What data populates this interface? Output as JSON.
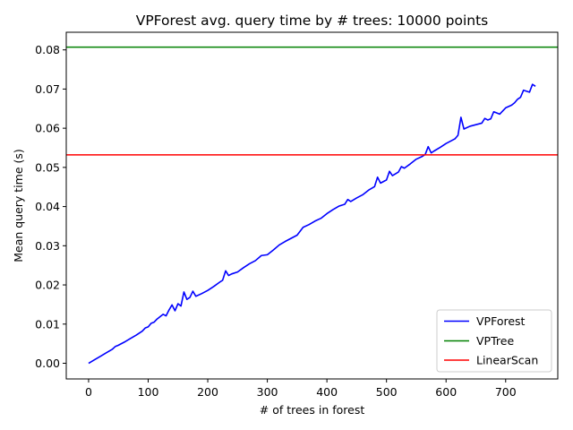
{
  "chart_data": {
    "type": "line",
    "title": "VPForest avg. query time by # trees: 10000 points",
    "xlabel": "# of trees in forest",
    "ylabel": "Mean query time (s)",
    "xlim": [
      -37.5,
      787.5
    ],
    "ylim": [
      -0.004,
      0.0845
    ],
    "xticks": [
      0,
      100,
      200,
      300,
      400,
      500,
      600,
      700
    ],
    "yticks": [
      0.0,
      0.01,
      0.02,
      0.03,
      0.04,
      0.05,
      0.06,
      0.07,
      0.08
    ],
    "ytick_labels": [
      "0.00",
      "0.01",
      "0.02",
      "0.03",
      "0.04",
      "0.05",
      "0.06",
      "0.07",
      "0.08"
    ],
    "legend_position": "lower-right",
    "grid": false,
    "series": [
      {
        "name": "VPForest",
        "color": "#0000ff",
        "x": [
          0,
          10,
          20,
          30,
          40,
          45,
          50,
          60,
          70,
          80,
          90,
          95,
          100,
          105,
          110,
          115,
          120,
          125,
          130,
          135,
          140,
          145,
          150,
          155,
          160,
          165,
          170,
          175,
          180,
          190,
          200,
          210,
          220,
          225,
          230,
          235,
          240,
          250,
          260,
          270,
          280,
          290,
          300,
          310,
          320,
          330,
          340,
          350,
          360,
          370,
          380,
          390,
          400,
          410,
          420,
          430,
          435,
          440,
          450,
          460,
          470,
          480,
          485,
          490,
          500,
          505,
          510,
          520,
          525,
          530,
          540,
          550,
          560,
          565,
          570,
          575,
          580,
          590,
          600,
          610,
          615,
          620,
          625,
          630,
          640,
          650,
          660,
          665,
          670,
          675,
          680,
          690,
          700,
          710,
          715,
          720,
          725,
          730,
          740,
          745,
          750
        ],
        "y": [
          0.0,
          0.0009,
          0.0018,
          0.0027,
          0.0036,
          0.0043,
          0.0046,
          0.0054,
          0.0063,
          0.0072,
          0.0082,
          0.009,
          0.0093,
          0.0102,
          0.0105,
          0.0113,
          0.0119,
          0.0125,
          0.0121,
          0.0136,
          0.0149,
          0.0134,
          0.0152,
          0.0146,
          0.0182,
          0.0163,
          0.0168,
          0.0184,
          0.0171,
          0.0178,
          0.0186,
          0.0196,
          0.0207,
          0.0212,
          0.0236,
          0.0224,
          0.0228,
          0.0233,
          0.0244,
          0.0254,
          0.0262,
          0.0275,
          0.0277,
          0.0289,
          0.0302,
          0.0311,
          0.0319,
          0.0327,
          0.0347,
          0.0354,
          0.0363,
          0.037,
          0.0382,
          0.0392,
          0.0401,
          0.0406,
          0.0418,
          0.0413,
          0.0422,
          0.043,
          0.0442,
          0.0451,
          0.0475,
          0.046,
          0.0468,
          0.049,
          0.0479,
          0.0488,
          0.0502,
          0.0498,
          0.0509,
          0.0521,
          0.0528,
          0.0533,
          0.0553,
          0.0537,
          0.0542,
          0.0551,
          0.0561,
          0.0569,
          0.0573,
          0.0582,
          0.0628,
          0.0598,
          0.0605,
          0.0609,
          0.0613,
          0.0625,
          0.0621,
          0.0624,
          0.0642,
          0.0636,
          0.0652,
          0.0659,
          0.0665,
          0.0674,
          0.0679,
          0.0697,
          0.0692,
          0.0712,
          0.0707
        ]
      },
      {
        "name": "VPTree",
        "color": "#008000",
        "constant": 0.0807
      },
      {
        "name": "LinearScan",
        "color": "#ff0000",
        "constant": 0.0532
      }
    ]
  }
}
